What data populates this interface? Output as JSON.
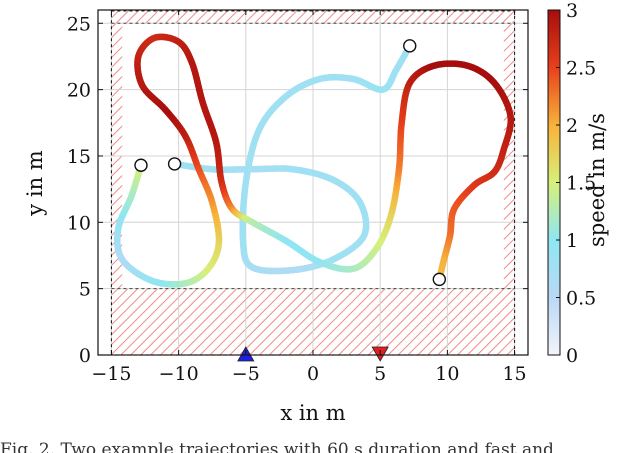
{
  "caption": "Fig. 2. Two example trajectories with 60 s duration and fast and",
  "chart_data": {
    "type": "line",
    "xlabel": "x in m",
    "ylabel": "y in m",
    "xlim": [
      -16,
      16
    ],
    "ylim": [
      0,
      26
    ],
    "xticks": [
      -15,
      -10,
      -5,
      0,
      5,
      10,
      15
    ],
    "yticks": [
      0,
      5,
      10,
      15,
      20,
      25
    ],
    "grid": true,
    "hatched_regions": [
      {
        "x": [
          -15,
          15
        ],
        "y": [
          0,
          5
        ]
      },
      {
        "x": [
          -15,
          15
        ],
        "y": [
          25,
          26
        ]
      },
      {
        "x": [
          -15,
          -14.2
        ],
        "y": [
          5,
          25
        ]
      },
      {
        "x": [
          14.2,
          15
        ],
        "y": [
          5,
          25
        ]
      }
    ],
    "markers": [
      {
        "shape": "triangle-up",
        "x": -5,
        "y": 0,
        "color": "#1f1fe0"
      },
      {
        "shape": "triangle-down",
        "x": 5,
        "y": 0,
        "color": "#e02020"
      }
    ],
    "colorbar": {
      "label": "speed in m/s",
      "min": 0,
      "max": 3,
      "ticks": [
        0,
        0.5,
        1,
        1.5,
        2,
        2.5,
        3
      ],
      "colormap": [
        "#f4f3fb",
        "#b9d8f4",
        "#8fe6f2",
        "#d6f07a",
        "#f7b23a",
        "#e8401c",
        "#a60d0d"
      ]
    },
    "series": [
      {
        "points": [
          {
            "x": -10.3,
            "y": 14.4,
            "speed": 0.8
          },
          {
            "x": -7.5,
            "y": 14.0,
            "speed": 0.8
          },
          {
            "x": -4.5,
            "y": 14.0,
            "speed": 0.7
          },
          {
            "x": -1.5,
            "y": 14.0,
            "speed": 0.8
          },
          {
            "x": 1.5,
            "y": 13.2,
            "speed": 0.8
          },
          {
            "x": 3.5,
            "y": 11.5,
            "speed": 0.8
          },
          {
            "x": 3.8,
            "y": 9.0,
            "speed": 0.8
          },
          {
            "x": 1.5,
            "y": 7.2,
            "speed": 0.8
          },
          {
            "x": -1.5,
            "y": 6.4,
            "speed": 0.6
          },
          {
            "x": -4.5,
            "y": 6.6,
            "speed": 0.7
          },
          {
            "x": -5.2,
            "y": 8.5,
            "speed": 0.8
          },
          {
            "x": -5.0,
            "y": 13.0,
            "speed": 0.8
          },
          {
            "x": -4.0,
            "y": 17.0,
            "speed": 0.8
          },
          {
            "x": -2.0,
            "y": 19.5,
            "speed": 0.8
          },
          {
            "x": 0.5,
            "y": 20.8,
            "speed": 0.8
          },
          {
            "x": 3.0,
            "y": 20.8,
            "speed": 0.8
          },
          {
            "x": 5.2,
            "y": 20.0,
            "speed": 0.9
          },
          {
            "x": 6.2,
            "y": 21.5,
            "speed": 0.8
          },
          {
            "x": 7.2,
            "y": 23.3,
            "speed": 0.8
          }
        ]
      },
      {
        "points": [
          {
            "x": -12.8,
            "y": 14.3,
            "speed": 1.6
          },
          {
            "x": -13.5,
            "y": 12.0,
            "speed": 1.2
          },
          {
            "x": -14.5,
            "y": 9.5,
            "speed": 0.9
          },
          {
            "x": -14.2,
            "y": 7.2,
            "speed": 0.6
          },
          {
            "x": -12.0,
            "y": 5.6,
            "speed": 0.9
          },
          {
            "x": -9.5,
            "y": 5.4,
            "speed": 1.2
          },
          {
            "x": -7.8,
            "y": 6.5,
            "speed": 1.5
          },
          {
            "x": -7.0,
            "y": 8.5,
            "speed": 1.7
          },
          {
            "x": -7.5,
            "y": 11.5,
            "speed": 2.1
          },
          {
            "x": -8.5,
            "y": 14.0,
            "speed": 2.4
          },
          {
            "x": -9.5,
            "y": 16.5,
            "speed": 2.8
          },
          {
            "x": -11.0,
            "y": 18.5,
            "speed": 3.0
          },
          {
            "x": -12.7,
            "y": 20.3,
            "speed": 2.9
          },
          {
            "x": -13.0,
            "y": 22.5,
            "speed": 2.8
          },
          {
            "x": -11.8,
            "y": 23.9,
            "speed": 2.7
          },
          {
            "x": -10.0,
            "y": 23.6,
            "speed": 2.8
          },
          {
            "x": -9.0,
            "y": 22.0,
            "speed": 2.9
          },
          {
            "x": -8.2,
            "y": 19.0,
            "speed": 2.9
          },
          {
            "x": -7.2,
            "y": 16.0,
            "speed": 2.9
          },
          {
            "x": -6.8,
            "y": 13.0,
            "speed": 2.7
          },
          {
            "x": -6.0,
            "y": 11.0,
            "speed": 2.2
          },
          {
            "x": -4.5,
            "y": 10.0,
            "speed": 1.3
          },
          {
            "x": -2.0,
            "y": 8.6,
            "speed": 1.0
          },
          {
            "x": 0.5,
            "y": 7.0,
            "speed": 1.0
          },
          {
            "x": 3.0,
            "y": 6.5,
            "speed": 1.2
          },
          {
            "x": 4.7,
            "y": 8.0,
            "speed": 1.4
          },
          {
            "x": 5.8,
            "y": 10.5,
            "speed": 1.7
          },
          {
            "x": 6.4,
            "y": 14.0,
            "speed": 2.2
          },
          {
            "x": 6.6,
            "y": 17.5,
            "speed": 2.5
          },
          {
            "x": 7.2,
            "y": 20.5,
            "speed": 2.8
          },
          {
            "x": 9.0,
            "y": 21.8,
            "speed": 3.0
          },
          {
            "x": 11.5,
            "y": 21.8,
            "speed": 3.0
          },
          {
            "x": 13.5,
            "y": 20.5,
            "speed": 3.0
          },
          {
            "x": 14.7,
            "y": 18.0,
            "speed": 2.9
          },
          {
            "x": 14.2,
            "y": 15.5,
            "speed": 2.8
          },
          {
            "x": 13.5,
            "y": 13.8,
            "speed": 2.7
          },
          {
            "x": 12.0,
            "y": 12.8,
            "speed": 2.6
          },
          {
            "x": 10.5,
            "y": 11.0,
            "speed": 2.4
          },
          {
            "x": 10.2,
            "y": 9.0,
            "speed": 2.3
          },
          {
            "x": 9.7,
            "y": 7.0,
            "speed": 2.0
          },
          {
            "x": 9.4,
            "y": 5.7,
            "speed": 1.9
          }
        ]
      }
    ],
    "endpoints": [
      {
        "x": -10.3,
        "y": 14.4
      },
      {
        "x": 7.2,
        "y": 23.3
      },
      {
        "x": -12.8,
        "y": 14.3
      },
      {
        "x": 9.4,
        "y": 5.7
      }
    ]
  }
}
